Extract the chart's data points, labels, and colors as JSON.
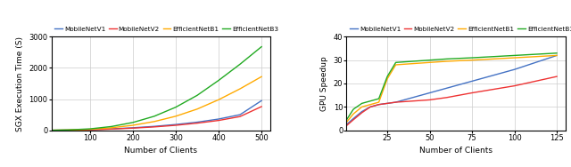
{
  "left": {
    "xlabel": "Number of Clients",
    "ylabel": "SGX Execution Time (S)",
    "xlim": [
      10,
      520
    ],
    "ylim": [
      0,
      3000
    ],
    "xticks": [
      100,
      200,
      300,
      400,
      500
    ],
    "yticks": [
      0,
      1000,
      2000,
      3000
    ],
    "series": {
      "MobileNetV1": {
        "color": "#4472C4",
        "x": [
          10,
          50,
          100,
          150,
          200,
          250,
          300,
          350,
          400,
          450,
          500
        ],
        "y": [
          0,
          5,
          20,
          45,
          80,
          125,
          185,
          260,
          360,
          500,
          950
        ]
      },
      "MobileNetV2": {
        "color": "#EE3333",
        "x": [
          10,
          50,
          100,
          150,
          200,
          250,
          300,
          350,
          400,
          450,
          500
        ],
        "y": [
          0,
          4,
          16,
          38,
          68,
          108,
          160,
          228,
          315,
          440,
          760
        ]
      },
      "EfficientNetB1": {
        "color": "#FFAA00",
        "x": [
          10,
          50,
          100,
          150,
          200,
          250,
          300,
          350,
          400,
          450,
          500
        ],
        "y": [
          0,
          8,
          30,
          80,
          160,
          280,
          450,
          680,
          980,
          1330,
          1720
        ]
      },
      "EfficientNetB3": {
        "color": "#22AA22",
        "x": [
          10,
          50,
          100,
          150,
          200,
          250,
          300,
          350,
          400,
          450,
          500
        ],
        "y": [
          0,
          12,
          45,
          120,
          250,
          450,
          740,
          1120,
          1600,
          2120,
          2680
        ]
      }
    }
  },
  "right": {
    "xlabel": "Number of Clients",
    "ylabel": "GPU Speedup",
    "xlim": [
      1,
      130
    ],
    "ylim": [
      0,
      40
    ],
    "xticks": [
      25,
      50,
      75,
      100,
      125
    ],
    "yticks": [
      0,
      10,
      20,
      30,
      40
    ],
    "series": {
      "MobileNetV1": {
        "color": "#4472C4",
        "x": [
          1,
          5,
          10,
          15,
          20,
          25,
          30,
          40,
          50,
          60,
          75,
          100,
          125
        ],
        "y": [
          2.5,
          5,
          8,
          10,
          11,
          11.5,
          12,
          14,
          16,
          18,
          21,
          26,
          32
        ]
      },
      "MobileNetV2": {
        "color": "#EE3333",
        "x": [
          1,
          5,
          10,
          15,
          20,
          25,
          30,
          40,
          50,
          60,
          75,
          100,
          125
        ],
        "y": [
          2.0,
          4.5,
          7.5,
          10,
          11,
          11.5,
          12,
          12.5,
          13,
          14,
          16,
          19,
          23
        ]
      },
      "EfficientNetB1": {
        "color": "#FFAA00",
        "x": [
          1,
          5,
          10,
          15,
          20,
          25,
          30,
          40,
          50,
          60,
          75,
          100,
          125
        ],
        "y": [
          3.5,
          7,
          10,
          11,
          12,
          22,
          28,
          28.5,
          29,
          29.5,
          30,
          31,
          32
        ]
      },
      "EfficientNetB3": {
        "color": "#22AA22",
        "x": [
          1,
          5,
          10,
          15,
          20,
          25,
          30,
          40,
          50,
          60,
          75,
          100,
          125
        ],
        "y": [
          4.5,
          9,
          11.5,
          12.5,
          13.5,
          23,
          29,
          29.5,
          30,
          30.5,
          31,
          32,
          33
        ]
      }
    }
  },
  "legend_labels": [
    "MobileNetV1",
    "MobileNetV2",
    "EfficientNetB1",
    "EfficientNetB3"
  ],
  "legend_colors": [
    "#4472C4",
    "#EE3333",
    "#FFAA00",
    "#22AA22"
  ],
  "figsize": [
    6.4,
    1.88
  ],
  "dpi": 100
}
